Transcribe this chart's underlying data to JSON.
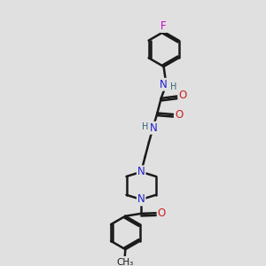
{
  "bg_color": "#e0e0e0",
  "bond_color": "#1a1a1a",
  "bond_width": 1.8,
  "atom_colors": {
    "C": "#1a1a1a",
    "N": "#2020cc",
    "O": "#cc2020",
    "F": "#cc00cc",
    "H": "#336677"
  },
  "font_size": 8.5,
  "fig_size": [
    3.0,
    3.0
  ],
  "dpi": 100,
  "xlim": [
    0,
    10
  ],
  "ylim": [
    0,
    10
  ]
}
